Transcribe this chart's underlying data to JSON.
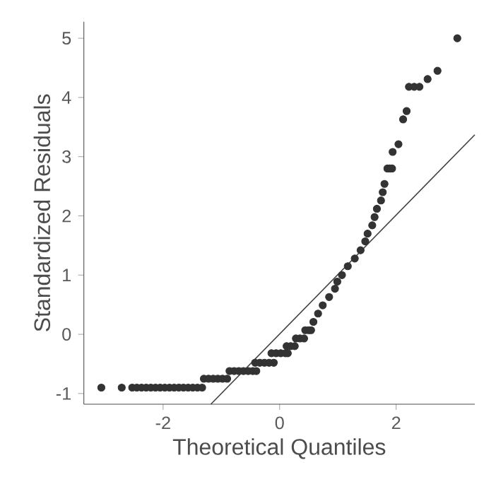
{
  "chart_data": {
    "type": "scatter",
    "xlabel": "Theoretical Quantiles",
    "ylabel": "Standardized Residuals",
    "xlim": [
      -3.36,
      3.35
    ],
    "ylim": [
      -1.18,
      5.28
    ],
    "xticks": [
      -2,
      0,
      2
    ],
    "yticks": [
      -1,
      0,
      1,
      2,
      3,
      4,
      5
    ],
    "grid": false,
    "series": [
      {
        "marker": "circle",
        "color": "#333333",
        "x": [
          -3.06,
          -2.71,
          -2.53,
          -2.45,
          -2.37,
          -2.29,
          -2.21,
          -2.13,
          -2.05,
          -1.97,
          -1.89,
          -1.81,
          -1.73,
          -1.65,
          -1.57,
          -1.49,
          -1.41,
          -1.33,
          -1.3,
          -1.22,
          -1.14,
          -1.06,
          -0.98,
          -0.9,
          -0.86,
          -0.78,
          -0.7,
          -0.62,
          -0.54,
          -0.46,
          -0.4,
          -0.42,
          -0.34,
          -0.26,
          -0.18,
          -0.1,
          -0.14,
          -0.06,
          0.02,
          0.1,
          0.14,
          0.12,
          0.19,
          0.26,
          0.28,
          0.35,
          0.42,
          0.44,
          0.5,
          0.54,
          0.58,
          0.66,
          0.74,
          0.85,
          0.95,
          0.99,
          1.07,
          1.17,
          1.29,
          1.39,
          1.47,
          1.51,
          1.59,
          1.63,
          1.67,
          1.74,
          1.77,
          1.8,
          1.85,
          1.89,
          1.93,
          1.94,
          2.04,
          2.12,
          2.18,
          2.22,
          2.31,
          2.4,
          2.54,
          2.71,
          3.05
        ],
        "values": [
          -0.9,
          -0.9,
          -0.9,
          -0.9,
          -0.9,
          -0.9,
          -0.9,
          -0.9,
          -0.9,
          -0.9,
          -0.9,
          -0.9,
          -0.9,
          -0.9,
          -0.9,
          -0.9,
          -0.9,
          -0.9,
          -0.75,
          -0.75,
          -0.75,
          -0.75,
          -0.75,
          -0.75,
          -0.62,
          -0.62,
          -0.62,
          -0.62,
          -0.62,
          -0.62,
          -0.62,
          -0.48,
          -0.48,
          -0.48,
          -0.48,
          -0.48,
          -0.32,
          -0.32,
          -0.32,
          -0.32,
          -0.32,
          -0.2,
          -0.2,
          -0.2,
          -0.07,
          -0.07,
          -0.07,
          0.07,
          0.07,
          0.07,
          0.21,
          0.35,
          0.49,
          0.63,
          0.77,
          0.89,
          1.0,
          1.15,
          1.28,
          1.42,
          1.57,
          1.7,
          1.84,
          1.98,
          2.12,
          2.26,
          2.4,
          2.54,
          2.8,
          2.8,
          2.8,
          3.08,
          3.21,
          3.63,
          3.77,
          4.18,
          4.18,
          4.18,
          4.31,
          4.45,
          5.0
        ]
      },
      {
        "type": "line",
        "marker": "none",
        "color": "#404040",
        "x": [
          -1.18,
          3.35
        ],
        "values": [
          -1.18,
          3.37
        ]
      }
    ]
  }
}
